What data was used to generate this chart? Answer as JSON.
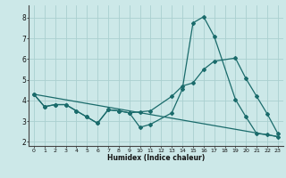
{
  "xlabel": "Humidex (Indice chaleur)",
  "bg_color": "#cce8e8",
  "grid_color": "#aad0d0",
  "line_color": "#1a6b6b",
  "xlim": [
    -0.5,
    23.5
  ],
  "ylim": [
    1.8,
    8.6
  ],
  "xticks": [
    0,
    1,
    2,
    3,
    4,
    5,
    6,
    7,
    8,
    9,
    10,
    11,
    12,
    13,
    14,
    15,
    16,
    17,
    18,
    19,
    20,
    21,
    22,
    23
  ],
  "yticks": [
    2,
    3,
    4,
    5,
    6,
    7,
    8
  ],
  "line1_x": [
    0,
    1,
    2,
    3,
    4,
    5,
    6,
    7,
    8,
    9,
    10,
    11,
    13,
    14,
    15,
    16,
    17,
    19,
    20,
    21,
    22,
    23
  ],
  "line1_y": [
    4.3,
    3.7,
    3.8,
    3.8,
    3.5,
    3.2,
    2.9,
    3.55,
    3.5,
    3.4,
    2.7,
    2.85,
    3.4,
    4.55,
    7.75,
    8.05,
    7.1,
    4.05,
    3.2,
    2.4,
    2.35,
    2.25
  ],
  "line2_x": [
    0,
    1,
    2,
    3,
    4,
    5,
    6,
    7,
    8,
    9,
    10,
    11,
    13,
    14,
    15,
    16,
    17,
    19,
    20,
    21,
    22,
    23
  ],
  "line2_y": [
    4.3,
    3.7,
    3.8,
    3.8,
    3.5,
    3.2,
    2.9,
    3.55,
    3.5,
    3.4,
    3.45,
    3.5,
    4.2,
    4.7,
    4.85,
    5.5,
    5.9,
    6.05,
    5.05,
    4.2,
    3.35,
    2.4
  ],
  "line3_x": [
    0,
    23
  ],
  "line3_y": [
    4.3,
    2.25
  ]
}
